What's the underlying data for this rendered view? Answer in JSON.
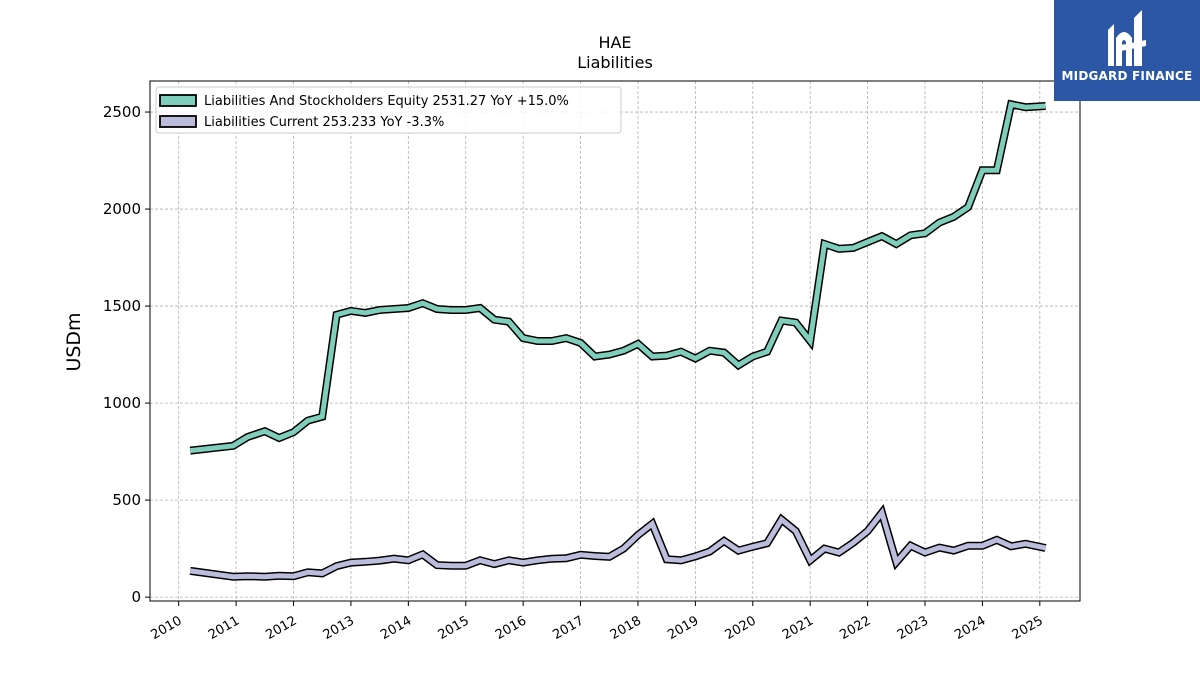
{
  "chart_data": {
    "type": "line",
    "title": "HAE",
    "subtitle": "Liabilities",
    "xlabel": "",
    "ylabel": "USDm",
    "xlim": [
      2009.5,
      2025.7
    ],
    "ylim": [
      -20,
      2660
    ],
    "xticks": [
      "2010",
      "2011",
      "2012",
      "2013",
      "2014",
      "2015",
      "2016",
      "2017",
      "2018",
      "2019",
      "2020",
      "2021",
      "2022",
      "2023",
      "2024",
      "2025"
    ],
    "yticks": [
      "0",
      "500",
      "1000",
      "1500",
      "2000",
      "2500"
    ],
    "grid": true,
    "legend_position": "top-left",
    "series": [
      {
        "name": "Liabilities And Stockholders Equity",
        "legend_label": "Liabilities And Stockholders Equity  2531.27 YoY +15.0%",
        "color": "#7fcdbb",
        "x": [
          2010.2,
          2010.95,
          2011.2,
          2011.5,
          2011.75,
          2012.0,
          2012.25,
          2012.5,
          2012.75,
          2013.0,
          2013.25,
          2013.5,
          2013.75,
          2014.0,
          2014.25,
          2014.5,
          2014.75,
          2015.0,
          2015.25,
          2015.5,
          2015.75,
          2016.0,
          2016.25,
          2016.5,
          2016.75,
          2017.0,
          2017.25,
          2017.5,
          2017.75,
          2018.0,
          2018.25,
          2018.5,
          2018.75,
          2019.0,
          2019.25,
          2019.5,
          2019.75,
          2020.0,
          2020.25,
          2020.5,
          2020.75,
          2021.0,
          2021.25,
          2021.5,
          2021.75,
          2022.0,
          2022.25,
          2022.5,
          2022.75,
          2023.0,
          2023.25,
          2023.5,
          2023.75,
          2024.0,
          2024.25,
          2024.5,
          2024.75,
          2025.1
        ],
        "values": [
          755,
          780,
          825,
          855,
          820,
          850,
          910,
          930,
          1455,
          1475,
          1465,
          1480,
          1485,
          1490,
          1515,
          1485,
          1480,
          1480,
          1490,
          1430,
          1420,
          1335,
          1320,
          1320,
          1335,
          1310,
          1240,
          1250,
          1270,
          1305,
          1240,
          1245,
          1265,
          1230,
          1270,
          1260,
          1195,
          1240,
          1265,
          1425,
          1415,
          1320,
          1820,
          1795,
          1800,
          1830,
          1860,
          1820,
          1865,
          1875,
          1930,
          1960,
          2010,
          2200,
          2200,
          2540,
          2525,
          2531
        ]
      },
      {
        "name": "Liabilities Current",
        "legend_label": "Liabilities Current  253.233 YoY -3.3%",
        "color": "#bcbddc",
        "x": [
          2010.2,
          2010.95,
          2011.2,
          2011.5,
          2011.75,
          2012.0,
          2012.25,
          2012.5,
          2012.75,
          2013.0,
          2013.25,
          2013.5,
          2013.75,
          2014.0,
          2014.25,
          2014.5,
          2014.75,
          2015.0,
          2015.25,
          2015.5,
          2015.75,
          2016.0,
          2016.25,
          2016.5,
          2016.75,
          2017.0,
          2017.25,
          2017.5,
          2017.75,
          2018.0,
          2018.25,
          2018.5,
          2018.75,
          2019.0,
          2019.25,
          2019.5,
          2019.75,
          2020.0,
          2020.25,
          2020.5,
          2020.75,
          2021.0,
          2021.25,
          2021.5,
          2021.75,
          2022.0,
          2022.25,
          2022.5,
          2022.75,
          2023.0,
          2023.25,
          2023.5,
          2023.75,
          2024.0,
          2024.25,
          2024.5,
          2024.75,
          2025.1
        ],
        "values": [
          135,
          105,
          108,
          105,
          110,
          108,
          128,
          122,
          160,
          178,
          182,
          188,
          198,
          190,
          220,
          165,
          162,
          162,
          190,
          170,
          190,
          178,
          190,
          198,
          200,
          218,
          212,
          208,
          250,
          320,
          378,
          195,
          190,
          210,
          235,
          290,
          240,
          260,
          278,
          400,
          340,
          190,
          250,
          230,
          280,
          340,
          435,
          180,
          265,
          230,
          255,
          240,
          265,
          265,
          295,
          262,
          275,
          253
        ]
      }
    ]
  },
  "logo": {
    "text": "MIDGARD FINANCE"
  }
}
